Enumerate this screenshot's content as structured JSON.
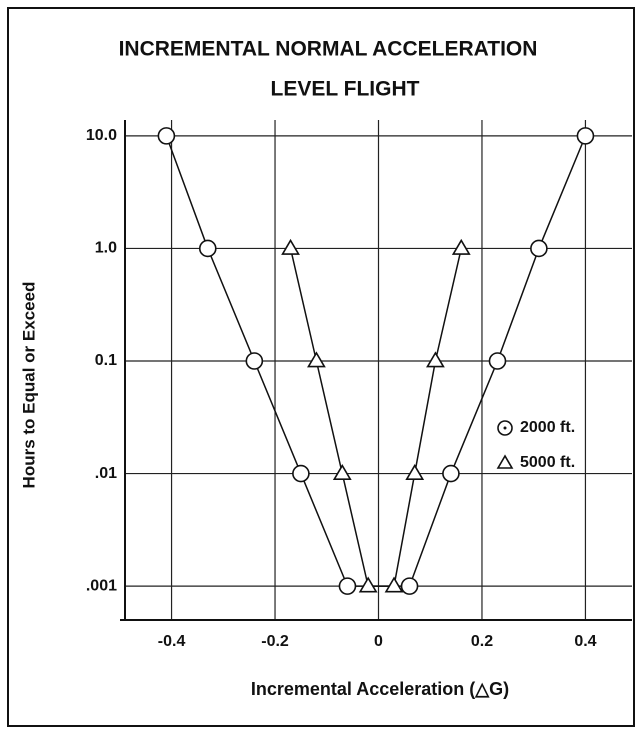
{
  "chart_data": {
    "type": "scatter",
    "title": [
      "INCREMENTAL NORMAL ACCELERATION",
      "LEVEL FLIGHT"
    ],
    "x_label": "Incremental Acceleration (△G)",
    "y_label": "Hours to Equal or Exceed",
    "series": [
      {
        "name": "2000 ft.",
        "marker": "circle",
        "color": "#111111",
        "x": [
          -0.41,
          -0.33,
          -0.24,
          -0.15,
          -0.06,
          0.06,
          0.14,
          0.23,
          0.31,
          0.4
        ],
        "values": [
          10,
          1,
          0.1,
          0.01,
          0.001,
          0.001,
          0.01,
          0.1,
          1,
          10
        ]
      },
      {
        "name": "5000 ft.",
        "marker": "triangle",
        "color": "#111111",
        "x": [
          -0.17,
          -0.12,
          -0.07,
          -0.02,
          0.03,
          0.07,
          0.11,
          0.16
        ],
        "values": [
          1,
          0.1,
          0.01,
          0.001,
          0.001,
          0.01,
          0.1,
          1
        ]
      }
    ],
    "xlim": [
      -0.49,
      0.49
    ],
    "xticks": [
      -0.4,
      -0.2,
      0,
      0.2,
      0.4
    ],
    "ylim": [
      0.0005,
      20
    ],
    "y_log": true,
    "yticks": [
      {
        "value": 10,
        "label": "10.0"
      },
      {
        "value": 1,
        "label": "1.0"
      },
      0.1,
      {
        "value": 0.01,
        "label": ".01"
      },
      {
        "value": 0.001,
        "label": ".001"
      }
    ],
    "grid": true
  }
}
